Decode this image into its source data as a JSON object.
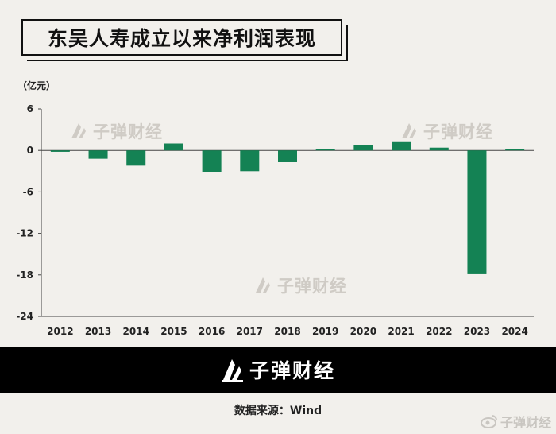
{
  "header": {
    "title": "东吴人寿成立以来净利润表现"
  },
  "watermarks": [
    {
      "text": "子弹财经"
    },
    {
      "text": "子弹财经"
    },
    {
      "text": "子弹财经"
    }
  ],
  "footer": {
    "brand": "子弹财经",
    "source": "数据来源：Wind",
    "corner_text": "子弹财经"
  },
  "icons": {
    "logo": "bullet-logo-icon",
    "weibo": "weibo-icon"
  },
  "colors": {
    "bar": "#148254",
    "background": "#f2f0ec",
    "footer_bg": "#000000"
  },
  "chart_data": {
    "type": "bar",
    "title": "东吴人寿成立以来净利润表现",
    "ylabel": "（亿元）",
    "xlabel": "",
    "categories": [
      "2012",
      "2013",
      "2014",
      "2015",
      "2016",
      "2017",
      "2018",
      "2019",
      "2020",
      "2021",
      "2022",
      "2023",
      "2024"
    ],
    "values": [
      -0.2,
      -1.2,
      -2.2,
      1.0,
      -3.1,
      -3.0,
      -1.7,
      0.1,
      0.8,
      1.2,
      0.4,
      -17.9,
      0.1
    ],
    "ylim": [
      -24,
      6
    ],
    "yticks": [
      6,
      0,
      -6,
      -12,
      -18,
      -24
    ],
    "grid": false,
    "legend": "none"
  }
}
